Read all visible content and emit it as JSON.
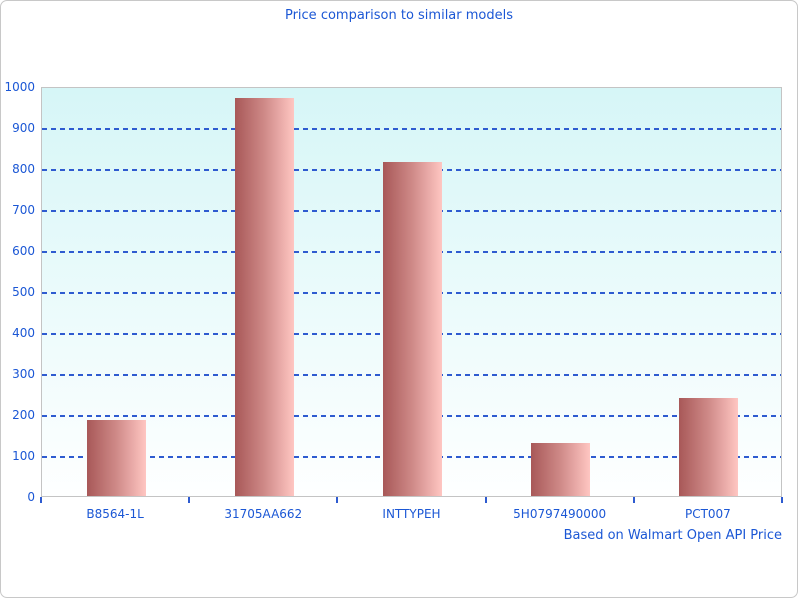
{
  "chart_data": {
    "type": "bar",
    "title": "Price comparison to similar models",
    "footer": "Based on Walmart Open API Price",
    "categories": [
      "B8564-1L",
      "31705AA662",
      "INTTYPEH",
      "5H0797490000",
      "PCT007"
    ],
    "values": [
      185,
      970,
      815,
      130,
      240
    ],
    "xlabel": "",
    "ylabel": "",
    "ylim": [
      0,
      1000
    ],
    "y_tick_step": 100,
    "y_tick_labels": [
      "0",
      "100",
      "200",
      "300",
      "400",
      "500",
      "600",
      "700",
      "800",
      "900",
      "1000"
    ],
    "grid": "horizontal-dashed",
    "legend": "none",
    "colors": {
      "text_blue": "#1b57d5",
      "grid_blue": "#2e5bd0",
      "bar_gradient_left": "#a85858",
      "bar_gradient_mid": "#cf8a88",
      "bar_gradient_right": "#ffc6c2",
      "plot_bg_top": "#d6f6f7",
      "plot_bg_bottom": "#feffff"
    }
  }
}
